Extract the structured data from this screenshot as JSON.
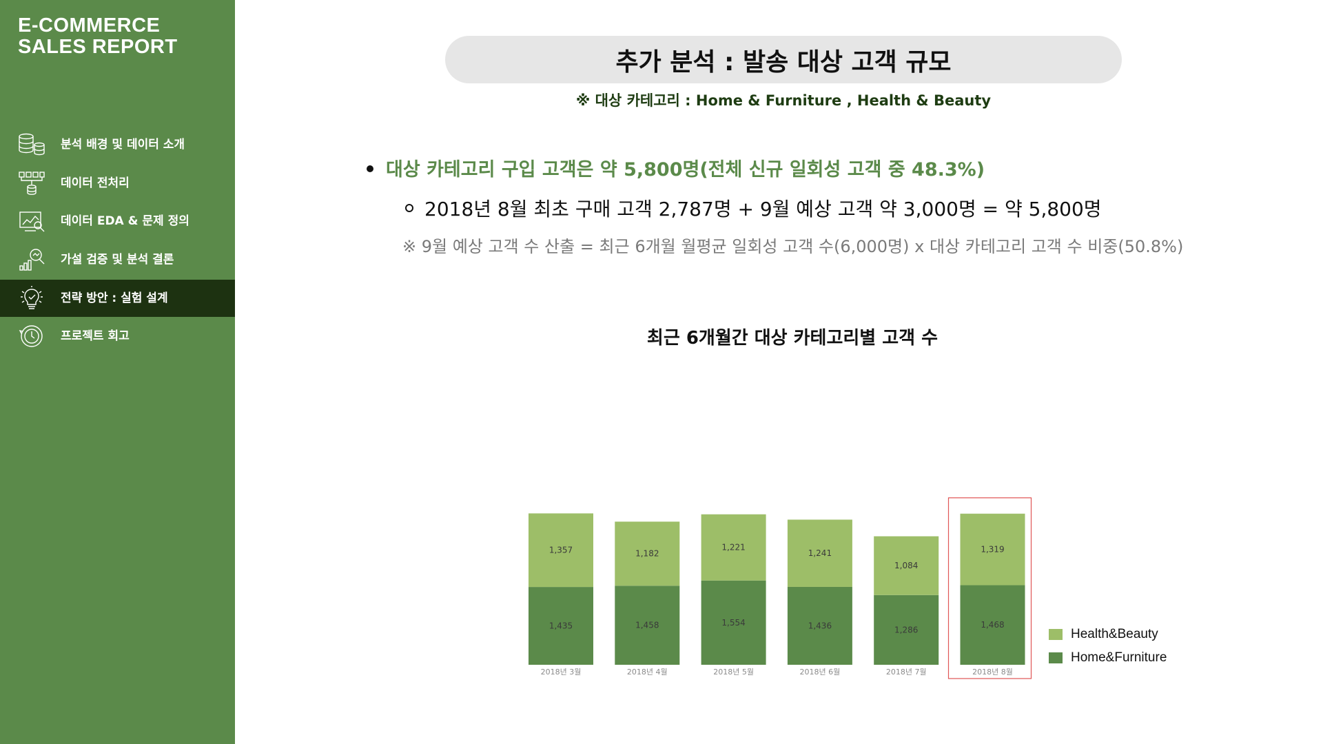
{
  "sidebar": {
    "title_line1": "E-COMMERCE",
    "title_line2": "SALES REPORT",
    "items": [
      {
        "label": "분석 배경 및 데이터 소개",
        "icon": "database-icon"
      },
      {
        "label": "데이터 전처리",
        "icon": "data-funnel-icon"
      },
      {
        "label": "데이터 EDA & 문제 정의",
        "icon": "chart-analysis-icon"
      },
      {
        "label": "가설 검증 및 분석 결론",
        "icon": "magnifier-chart-icon"
      },
      {
        "label": "전략 방안 : 실험 설계",
        "icon": "lightbulb-icon",
        "active": true
      },
      {
        "label": "프로젝트 회고",
        "icon": "clock-icon"
      }
    ]
  },
  "header": {
    "title": "추가 분석 : 발송 대상 고객 규모",
    "subtitle": "※ 대상 카테고리 : Home & Furniture , Health & Beauty"
  },
  "body": {
    "bullet_main": "대상 카테고리 구입 고객은 약 5,800명(전체 신규 일회성 고객 중 48.3%)",
    "bullet_sub": "2018년 8월 최초 구매 고객 2,787명 + 9월 예상 고객 약 3,000명 = 약 5,800명",
    "note": "※ 9월 예상 고객 수 산출 = 최근 6개월 월평균 일회성 고객 수(6,000명) x 대상 카테고리 고객 수 비중(50.8%)"
  },
  "colors": {
    "sidebar_bg": "#5b8a4a",
    "active_bg": "#1d3211",
    "health_beauty": "#9dbe68",
    "home_furniture": "#5b8a4a",
    "highlight_border": "#e05555"
  },
  "chart_data": {
    "type": "bar",
    "stacked": true,
    "title": "최근 6개월간 대상 카테고리별 고객 수",
    "categories": [
      "2018년 3월",
      "2018년 4월",
      "2018년 5월",
      "2018년 6월",
      "2018년 7월",
      "2018년 8월"
    ],
    "series": [
      {
        "name": "Home&Furniture",
        "values": [
          1435,
          1458,
          1554,
          1436,
          1286,
          1468
        ],
        "labels": [
          "1,435",
          "1,458",
          "1,554",
          "1,436",
          "1,286",
          "1,468"
        ],
        "color": "#5b8a4a"
      },
      {
        "name": "Health&Beauty",
        "values": [
          1357,
          1182,
          1221,
          1241,
          1084,
          1319
        ],
        "labels": [
          "1,357",
          "1,182",
          "1,221",
          "1,241",
          "1,084",
          "1,319"
        ],
        "color": "#9dbe68"
      }
    ],
    "highlight_category": "2018년 8월",
    "legend_position": "right-bottom",
    "grid": false
  }
}
